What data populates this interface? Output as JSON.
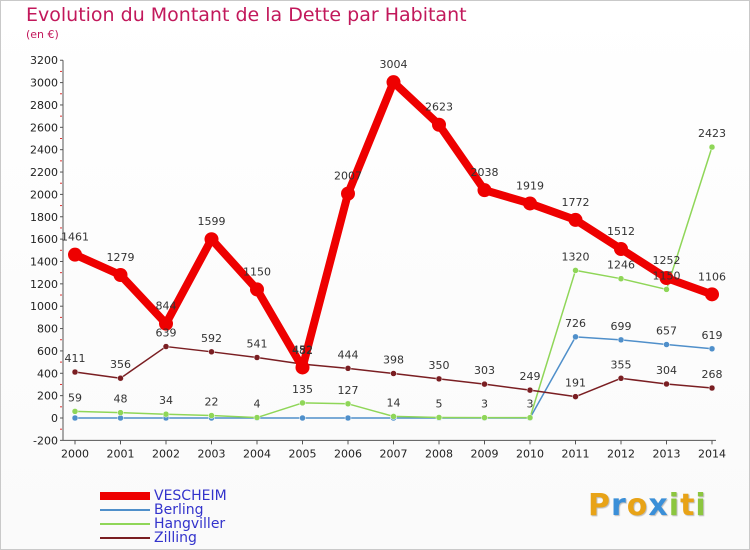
{
  "chart_data": {
    "type": "line",
    "title": "Evolution du Montant de la Dette par Habitant",
    "subtitle": "(en €)",
    "x": [
      "2000",
      "2001",
      "2002",
      "2003",
      "2004",
      "2005",
      "2006",
      "2007",
      "2008",
      "2009",
      "2010",
      "2011",
      "2012",
      "2013",
      "2014"
    ],
    "ylim": [
      -200,
      3200
    ],
    "yticks": [
      -200,
      0,
      200,
      400,
      600,
      800,
      1000,
      1200,
      1400,
      1600,
      1800,
      2000,
      2200,
      2400,
      2600,
      2800,
      3000,
      3200
    ],
    "grid": false,
    "legend_position": "bottom-left",
    "series": [
      {
        "name": "VESCHEIM",
        "color": "#ee0000",
        "values": [
          1461,
          1279,
          844,
          1599,
          1150,
          452,
          2007,
          3004,
          2623,
          2038,
          1919,
          1772,
          1512,
          1252,
          1106
        ]
      },
      {
        "name": "Berling",
        "color": "#4f8fca",
        "values": [
          0,
          0,
          0,
          0,
          0,
          0,
          0,
          0,
          0,
          0,
          0,
          726,
          699,
          657,
          619
        ]
      },
      {
        "name": "Hangviller",
        "color": "#8fd658",
        "values": [
          59,
          48,
          34,
          22,
          4,
          135,
          127,
          14,
          5,
          3,
          3,
          1320,
          1246,
          1150,
          2423
        ]
      },
      {
        "name": "Zilling",
        "color": "#7a1e22",
        "values": [
          411,
          356,
          639,
          592,
          541,
          482,
          444,
          398,
          350,
          303,
          249,
          191,
          355,
          304,
          268
        ]
      }
    ],
    "data_labels": {
      "VESCHEIM": [
        "1461",
        "1279",
        "844",
        "1599",
        "1150",
        "452",
        "2007",
        "3004",
        "2623",
        "2038",
        "1919",
        "1772",
        "1512",
        "1252",
        "1106"
      ],
      "Hangviller": [
        "59",
        "48",
        "34",
        "22",
        "4",
        "135",
        "127",
        "14",
        "5",
        "3",
        "3",
        "1320",
        "1246",
        "1150",
        "2423"
      ],
      "Zilling": [
        "411",
        "356",
        "639",
        "592",
        "541",
        "482",
        "444",
        "398",
        "350",
        "303",
        "249",
        "191",
        "355",
        "304",
        "268"
      ],
      "Berling": [
        "",
        "",
        "",
        "",
        "",
        "",
        "",
        "",
        "",
        "",
        "",
        "726",
        "699",
        "657",
        "619"
      ]
    }
  },
  "logo": {
    "letters": [
      "P",
      "r",
      "o",
      "x",
      "i",
      "t",
      "i"
    ],
    "colors": [
      "#e8a317",
      "#3a8fd8",
      "#e8a317",
      "#3a8fd8",
      "#8cc63f",
      "#e8a317",
      "#8cc63f"
    ]
  }
}
